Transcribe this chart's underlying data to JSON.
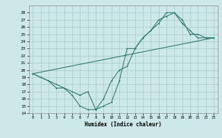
{
  "xlabel": "Humidex (Indice chaleur)",
  "bg_color": "#cce8e8",
  "grid_color": "#aacccc",
  "line_color": "#2a7a6a",
  "xlim": [
    -0.5,
    23.5
  ],
  "ylim": [
    14,
    29
  ],
  "xticks": [
    0,
    1,
    2,
    3,
    4,
    5,
    6,
    7,
    8,
    9,
    10,
    11,
    12,
    13,
    14,
    15,
    16,
    17,
    18,
    19,
    20,
    21,
    22,
    23
  ],
  "yticks": [
    14,
    15,
    16,
    17,
    18,
    19,
    20,
    21,
    22,
    23,
    24,
    25,
    26,
    27,
    28
  ],
  "line1_x": [
    0,
    1,
    2,
    3,
    4,
    5,
    6,
    7,
    8,
    9,
    10,
    11,
    12,
    13,
    14,
    15,
    16,
    17,
    18,
    19,
    20,
    21,
    22,
    23
  ],
  "line1_y": [
    19.5,
    19,
    18.5,
    17.5,
    17.5,
    16.5,
    15,
    14.5,
    14.5,
    15,
    15.5,
    18.5,
    23,
    23,
    24.5,
    25.5,
    26.5,
    28,
    28,
    27,
    25,
    25,
    24.5,
    24.5
  ],
  "line2_x": [
    0,
    2,
    3,
    4,
    5,
    6,
    7,
    8,
    9,
    10,
    11,
    12,
    13,
    14,
    15,
    16,
    17,
    18,
    19,
    20,
    21,
    22,
    23
  ],
  "line2_y": [
    19.5,
    18.5,
    18,
    17.5,
    17,
    16.5,
    17,
    14.5,
    16,
    18.5,
    20,
    20.5,
    23,
    24.5,
    25.5,
    27,
    27.5,
    28,
    26.5,
    25.5,
    24.5,
    24.5,
    24.5
  ],
  "line3_x": [
    0,
    23
  ],
  "line3_y": [
    19.5,
    24.5
  ]
}
